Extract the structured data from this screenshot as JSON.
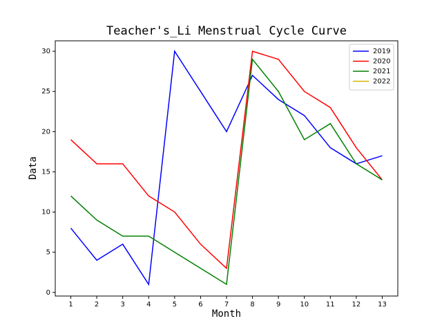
{
  "chart_data": {
    "type": "line",
    "title": "Teacher's_Li Menstrual Cycle Curve",
    "x_label": "Month",
    "y_label": "Data",
    "x": [
      1,
      2,
      3,
      4,
      5,
      6,
      7,
      8,
      9,
      10,
      11,
      12,
      13
    ],
    "series": [
      {
        "name": "2019",
        "color": "#0000ff",
        "values": [
          8,
          4,
          6,
          1,
          30,
          25,
          20,
          27,
          24,
          22,
          18,
          16,
          17
        ]
      },
      {
        "name": "2020",
        "color": "#ff0000",
        "values": [
          19,
          16,
          16,
          12,
          10,
          6,
          3,
          30,
          29,
          25,
          23,
          18,
          14
        ]
      },
      {
        "name": "2021",
        "color": "#008000",
        "values": [
          12,
          9,
          7,
          7,
          5,
          3,
          1,
          29,
          25,
          19,
          21,
          16,
          14
        ]
      },
      {
        "name": "2022",
        "color": "#d4b500",
        "values": [
          null,
          null,
          null,
          null,
          null,
          null,
          null,
          null,
          null,
          null,
          null,
          null,
          null
        ]
      }
    ],
    "xlim": [
      0.4,
      13.6
    ],
    "xticks": [
      1,
      2,
      3,
      4,
      5,
      6,
      7,
      8,
      9,
      10,
      11,
      12,
      13
    ],
    "ylim": [
      -0.45,
      31.3
    ],
    "yticks": [
      0,
      5,
      10,
      15,
      20,
      25,
      30
    ],
    "grid": false,
    "legend": "upper right"
  }
}
